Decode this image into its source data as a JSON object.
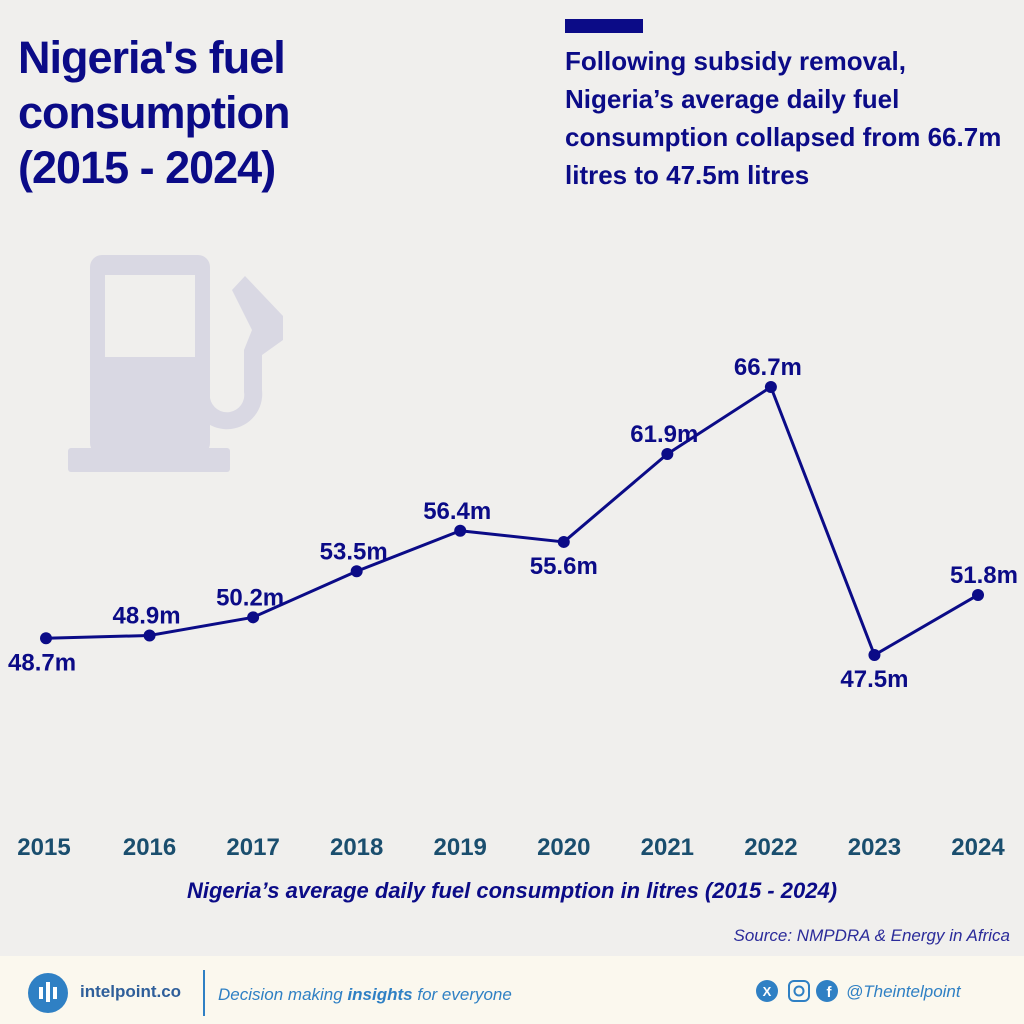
{
  "chart_data": {
    "type": "line",
    "title": "Nigeria's fuel consumption (2015 - 2024)",
    "subtitle": "Following subsidy removal, Nigeria’s average daily fuel consumption collapsed from 66.7m litres to 47.5m litres",
    "categories": [
      "2015",
      "2016",
      "2017",
      "2018",
      "2019",
      "2020",
      "2021",
      "2022",
      "2023",
      "2024"
    ],
    "values": [
      48.7,
      48.9,
      50.2,
      53.5,
      56.4,
      55.6,
      61.9,
      66.7,
      47.5,
      51.8
    ],
    "value_labels": [
      "48.7m",
      "48.9m",
      "50.2m",
      "53.5m",
      "56.4m",
      "55.6m",
      "61.9m",
      "66.7m",
      "47.5m",
      "51.8m"
    ],
    "color": "#0b0b87",
    "x_label": "Nigeria’s average daily fuel consumption in litres (2015 - 2024)",
    "source": "Source: NMPDRA & Energy in Africa"
  },
  "footer": {
    "brand": "intelpoint.co",
    "tagline": [
      "Decision making ",
      "insights",
      " for everyone"
    ],
    "handle": "@Theintelpoint"
  }
}
